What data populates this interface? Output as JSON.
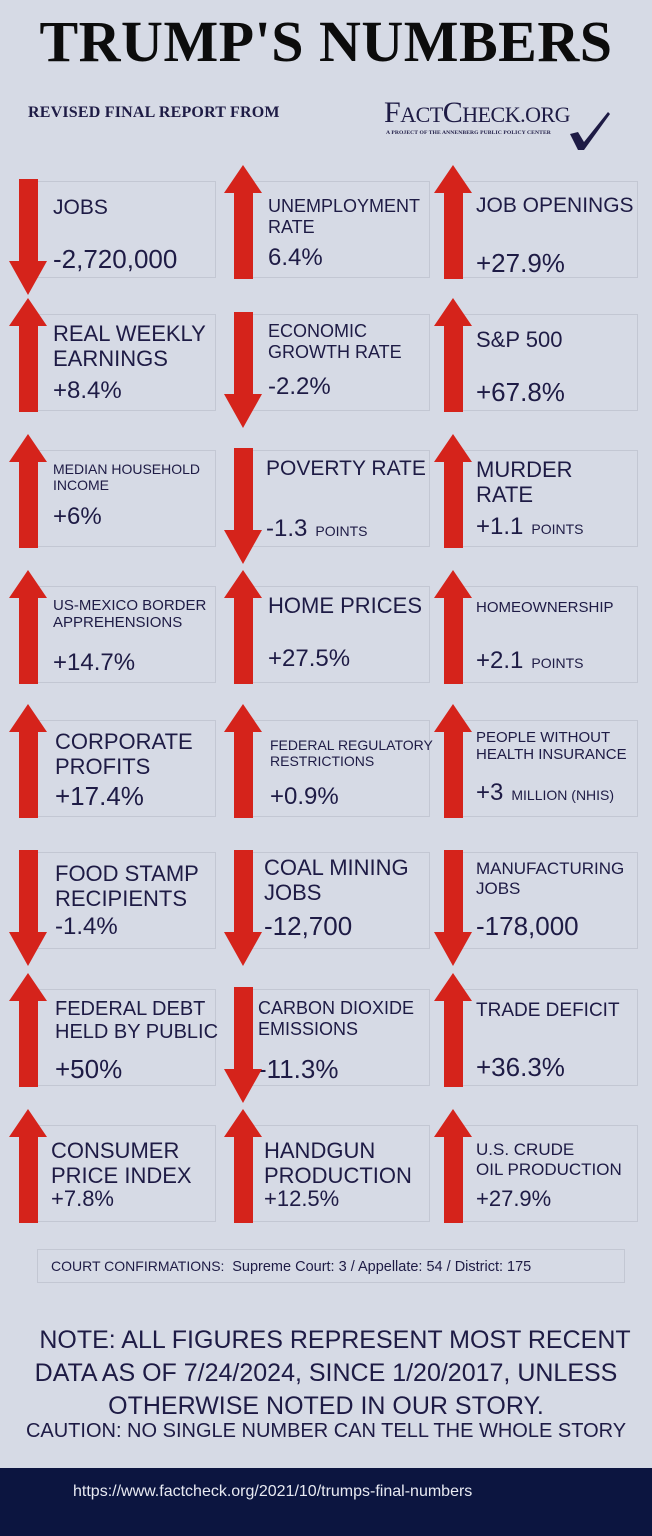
{
  "header": {
    "title": "TRUMP'S NUMBERS",
    "subtitle": "REVISED FINAL REPORT  FROM",
    "logo": {
      "name_part1_big": "F",
      "name_part1_small": "ACT",
      "name_part2_big": "C",
      "name_part2_small": "HECK.ORG",
      "tagline": "A PROJECT OF THE ANNENBERG PUBLIC POLICY CENTER",
      "icon": "checkmark-icon"
    }
  },
  "colors": {
    "background": "#d6dae5",
    "arrow_red": "#d5231b",
    "text_navy": "#1e1b45",
    "footer_navy": "#0c1540",
    "card_border": "#c3c7d3"
  },
  "metrics": [
    {
      "label": "JOBS",
      "value": "-2,720,000",
      "unit": "",
      "direction": "down"
    },
    {
      "label": "UNEMPLOYMENT\nRATE",
      "value": "6.4%",
      "unit": "",
      "direction": "up"
    },
    {
      "label": "JOB OPENINGS",
      "value": "+27.9%",
      "unit": "",
      "direction": "up"
    },
    {
      "label": "REAL WEEKLY\nEARNINGS",
      "value": "+8.4%",
      "unit": "",
      "direction": "up"
    },
    {
      "label": "ECONOMIC\nGROWTH RATE",
      "value": "-2.2%",
      "unit": "",
      "direction": "down"
    },
    {
      "label": "S&P 500",
      "value": "+67.8%",
      "unit": "",
      "direction": "up"
    },
    {
      "label": "MEDIAN HOUSEHOLD\nINCOME",
      "value": "+6%",
      "unit": "",
      "direction": "up"
    },
    {
      "label": "POVERTY RATE",
      "value": "-1.3",
      "unit": "POINTS",
      "direction": "down"
    },
    {
      "label": "MURDER\nRATE",
      "value": "+1.1",
      "unit": "POINTS",
      "direction": "up"
    },
    {
      "label": "US-MEXICO BORDER\nAPPREHENSIONS",
      "value": "+14.7%",
      "unit": "",
      "direction": "up"
    },
    {
      "label": "HOME PRICES",
      "value": "+27.5%",
      "unit": "",
      "direction": "up"
    },
    {
      "label": "HOMEOWNERSHIP",
      "value": "+2.1",
      "unit": "POINTS",
      "direction": "up"
    },
    {
      "label": "CORPORATE\nPROFITS",
      "value": "+17.4%",
      "unit": "",
      "direction": "up"
    },
    {
      "label": "FEDERAL REGULATORY\nRESTRICTIONS",
      "value": "+0.9%",
      "unit": "",
      "direction": "up"
    },
    {
      "label": "PEOPLE WITHOUT\nHEALTH INSURANCE",
      "value": "+3",
      "unit": "MILLION (NHIS)",
      "direction": "up"
    },
    {
      "label": "FOOD STAMP\nRECIPIENTS",
      "value": "-1.4%",
      "unit": "",
      "direction": "down"
    },
    {
      "label": "COAL MINING\nJOBS",
      "value": "-12,700",
      "unit": "",
      "direction": "down"
    },
    {
      "label": "MANUFACTURING\nJOBS",
      "value": "-178,000",
      "unit": "",
      "direction": "down"
    },
    {
      "label": "FEDERAL DEBT\nHELD BY PUBLIC",
      "value": "+50%",
      "unit": "",
      "direction": "up"
    },
    {
      "label": "CARBON DIOXIDE\nEMISSIONS",
      "value": "-11.3%",
      "unit": "",
      "direction": "down"
    },
    {
      "label": "TRADE DEFICIT",
      "value": "+36.3%",
      "unit": "",
      "direction": "up"
    },
    {
      "label": "CONSUMER\nPRICE INDEX",
      "value": "+7.8%",
      "unit": "",
      "direction": "up"
    },
    {
      "label": "HANDGUN\nPRODUCTION",
      "value": "+12.5%",
      "unit": "",
      "direction": "up"
    },
    {
      "label": "U.S. CRUDE\nOIL PRODUCTION",
      "value": "+27.9%",
      "unit": "",
      "direction": "up"
    }
  ],
  "court": {
    "label": "COURT CONFIRMATIONS:",
    "detail": "Supreme Court: 3 / Appellate: 54 / District: 175"
  },
  "note": {
    "line1": "NOTE:  ALL FIGURES REPRESENT MOST RECENT",
    "line2": "DATA AS OF 7/24/2024, SINCE 1/20/2017, UNLESS",
    "line3": "OTHERWISE NOTED IN OUR STORY."
  },
  "caution": "CAUTION: NO SINGLE NUMBER CAN TELL THE WHOLE STORY",
  "footer": {
    "url": "https://www.factcheck.org/2021/10/trumps-final-numbers"
  }
}
